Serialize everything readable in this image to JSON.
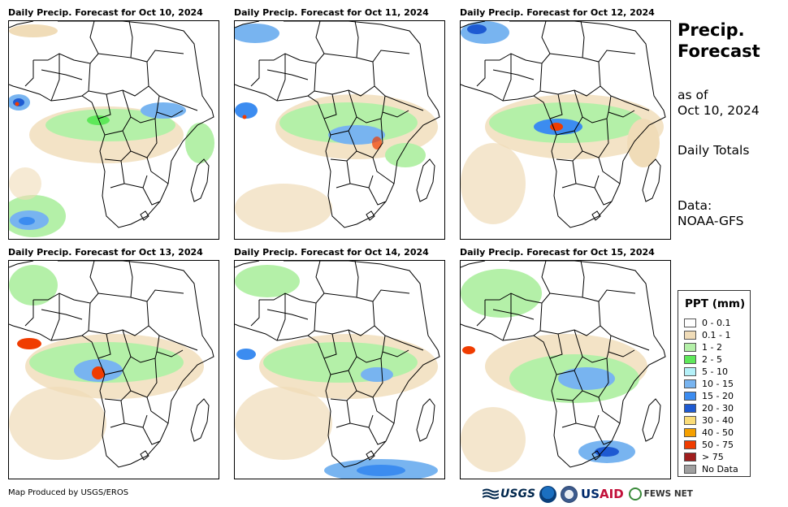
{
  "panels": [
    {
      "title": "Daily Precip. Forecast for Oct 10, 2024"
    },
    {
      "title": "Daily Precip. Forecast for Oct 11, 2024"
    },
    {
      "title": "Daily Precip. Forecast for Oct 12, 2024"
    },
    {
      "title": "Daily Precip. Forecast for Oct 13, 2024"
    },
    {
      "title": "Daily Precip. Forecast for Oct 14, 2024"
    },
    {
      "title": "Daily Precip. Forecast for Oct 15, 2024"
    }
  ],
  "sidebar": {
    "title_line1": "Precip.",
    "title_line2": "Forecast",
    "asof_line1": "as of",
    "asof_line2": "Oct 10, 2024",
    "totals": "Daily Totals",
    "data_line1": "Data:",
    "data_line2": "NOAA-GFS"
  },
  "legend": {
    "title": "PPT (mm)",
    "items": [
      {
        "label": "0 - 0.1",
        "color": "#ffffff"
      },
      {
        "label": "0.1 - 1",
        "color": "#f0dcb8"
      },
      {
        "label": "1 - 2",
        "color": "#b4f0a8"
      },
      {
        "label": "2 - 5",
        "color": "#5ee85a"
      },
      {
        "label": "5 - 10",
        "color": "#b4f0f8"
      },
      {
        "label": "10 - 15",
        "color": "#78b4f0"
      },
      {
        "label": "15 - 20",
        "color": "#3c8cf0"
      },
      {
        "label": "20 - 30",
        "color": "#1e5ad2"
      },
      {
        "label": "30 - 40",
        "color": "#fadc78"
      },
      {
        "label": "40 - 50",
        "color": "#f5a000"
      },
      {
        "label": "50 - 75",
        "color": "#f03c00"
      },
      {
        "label": "> 75",
        "color": "#a01e1e"
      },
      {
        "label": "No Data",
        "color": "#a0a0a0"
      }
    ]
  },
  "footer": {
    "credit": "Map Produced by USGS/EROS",
    "logo_usgs": "USGS",
    "logo_usaid_a": "US",
    "logo_usaid_b": "AID",
    "logo_fews": "FEWS NET"
  }
}
